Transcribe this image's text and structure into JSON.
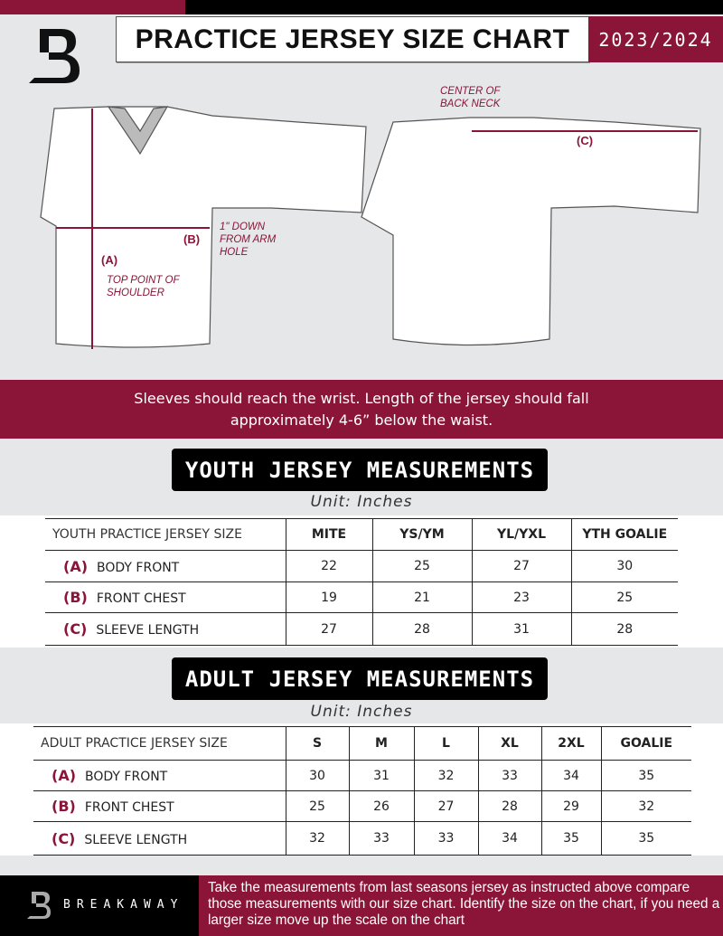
{
  "header": {
    "title": "PRACTICE JERSEY SIZE CHART",
    "season": "2023/2024"
  },
  "diagram": {
    "front_notes": {
      "a_label": "(A)",
      "a_note": "TOP POINT OF SHOULDER",
      "b_label": "(B)",
      "b_note": "1\" DOWN FROM ARM HOLE"
    },
    "back_notes": {
      "c_label": "(C)",
      "c_note": "CENTER OF BACK NECK"
    }
  },
  "instructions": "Sleeves should reach the wrist. Length of the jersey should fall approximately 4-6” below the waist.",
  "youth": {
    "title": "YOUTH JERSEY MEASUREMENTS",
    "unit": "Unit: Inches",
    "header": [
      "YOUTH PRACTICE JERSEY SIZE",
      "MITE",
      "YS/YM",
      "YL/YXL",
      "YTH GOALIE"
    ],
    "rows": [
      {
        "code": "(A)",
        "label": "BODY FRONT",
        "values": [
          "22",
          "25",
          "27",
          "30"
        ]
      },
      {
        "code": "(B)",
        "label": "FRONT CHEST",
        "values": [
          "19",
          "21",
          "23",
          "25"
        ]
      },
      {
        "code": "(C)",
        "label": "SLEEVE LENGTH",
        "values": [
          "27",
          "28",
          "31",
          "28"
        ]
      }
    ]
  },
  "adult": {
    "title": "ADULT JERSEY MEASUREMENTS",
    "unit": "Unit: Inches",
    "header": [
      "ADULT PRACTICE JERSEY SIZE",
      "S",
      "M",
      "L",
      "XL",
      "2XL",
      "GOALIE"
    ],
    "rows": [
      {
        "code": "(A)",
        "label": "BODY FRONT",
        "values": [
          "30",
          "31",
          "32",
          "33",
          "34",
          "35"
        ]
      },
      {
        "code": "(B)",
        "label": "FRONT CHEST",
        "values": [
          "25",
          "26",
          "27",
          "28",
          "29",
          "32"
        ]
      },
      {
        "code": "(C)",
        "label": "SLEEVE LENGTH",
        "values": [
          "32",
          "33",
          "33",
          "34",
          "35",
          "35"
        ]
      }
    ]
  },
  "footer": {
    "brand": "BREAKAWAY",
    "text": "Take the measurements from last seasons jersey as instructed above compare those measurements  with our size chart. Identify the size on the chart, if you need a larger size move up the scale on the chart"
  },
  "colors": {
    "accent": "#8a1538",
    "background": "#e6e7e8"
  }
}
